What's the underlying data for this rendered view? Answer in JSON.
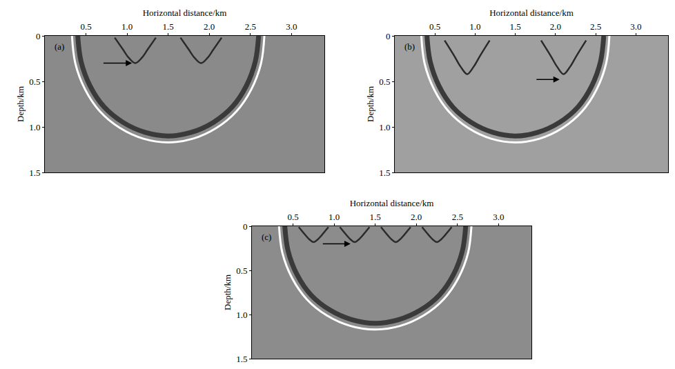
{
  "chart_data": [
    {
      "type": "line",
      "label": "(a)",
      "color": "#8a8a8a",
      "xlabel": "Horizontal distance/km",
      "ylabel": "Depth/km",
      "xlim": [
        0,
        3.4
      ],
      "ylim": [
        1.5,
        0
      ],
      "xticks": [
        0.5,
        {
          "value": 1,
          "label": "1.0"
        },
        1.5,
        {
          "value": 2,
          "label": "2.0"
        },
        2.5,
        {
          "value": 3,
          "label": "3.0"
        }
      ],
      "yticks": [
        0,
        0.5,
        {
          "value": 1,
          "label": "1.0"
        },
        1.5
      ],
      "series": [
        {
          "color": "#3a3a3a",
          "x": [
            2.6,
            2.56,
            2.45,
            2.28,
            2.05,
            1.78,
            1.5,
            1.22,
            0.95,
            0.72,
            0.55,
            0.44,
            0.4
          ],
          "values": [
            0,
            0.28,
            0.55,
            0.78,
            0.95,
            1.06,
            1.1,
            1.06,
            0.95,
            0.78,
            0.55,
            0.28,
            0
          ]
        },
        {
          "color": "#ffffff",
          "x": [
            2.67,
            2.63,
            2.51,
            2.33,
            2.09,
            1.8,
            1.5,
            1.2,
            0.91,
            0.67,
            0.49,
            0.37,
            0.33
          ],
          "values": [
            0,
            0.3,
            0.59,
            0.83,
            1.01,
            1.13,
            1.17,
            1.13,
            1.01,
            0.83,
            0.59,
            0.3,
            0
          ]
        },
        {
          "color": "#2a2a2a",
          "x": [
            0.85,
            0.95,
            1.02,
            1.1,
            1.18,
            1.25,
            1.35
          ],
          "values": [
            0.02,
            0.15,
            0.24,
            0.3,
            0.24,
            0.15,
            0.02
          ]
        },
        {
          "color": "#2a2a2a",
          "x": [
            1.65,
            1.75,
            1.82,
            1.9,
            1.98,
            2.05,
            2.15
          ],
          "values": [
            0.02,
            0.15,
            0.24,
            0.3,
            0.24,
            0.15,
            0.02
          ]
        }
      ],
      "arrow": {
        "from_x": 0.7,
        "from_y": 0.3,
        "x": 1.06,
        "y": 0.3
      }
    },
    {
      "type": "line",
      "label": "(b)",
      "color": "#a0a0a0",
      "xlabel": "Horizontal distance/km",
      "ylabel": "Depth/km",
      "xlim": [
        0,
        3.4
      ],
      "ylim": [
        1.5,
        0
      ],
      "xticks": [
        0.5,
        {
          "value": 1,
          "label": "1.0"
        },
        1.5,
        {
          "value": 2,
          "label": "2.0"
        },
        2.5,
        {
          "value": 3,
          "label": "3.0"
        }
      ],
      "yticks": [
        0,
        0.5,
        {
          "value": 1,
          "label": "1.0"
        },
        1.5
      ],
      "series": [
        {
          "color": "#3a3a3a",
          "x": [
            2.6,
            2.56,
            2.45,
            2.28,
            2.05,
            1.78,
            1.5,
            1.22,
            0.95,
            0.72,
            0.55,
            0.44,
            0.4
          ],
          "values": [
            0,
            0.28,
            0.55,
            0.78,
            0.95,
            1.06,
            1.1,
            1.06,
            0.95,
            0.78,
            0.55,
            0.28,
            0
          ]
        },
        {
          "color": "#ffffff",
          "x": [
            2.67,
            2.63,
            2.51,
            2.33,
            2.09,
            1.8,
            1.5,
            1.2,
            0.91,
            0.67,
            0.49,
            0.37,
            0.33
          ],
          "values": [
            0,
            0.3,
            0.59,
            0.83,
            1.01,
            1.13,
            1.17,
            1.13,
            1.01,
            0.83,
            0.59,
            0.3,
            0
          ]
        },
        {
          "color": "#2a2a2a",
          "x": [
            0.62,
            0.74,
            0.82,
            0.9,
            0.98,
            1.06,
            1.18
          ],
          "values": [
            0.05,
            0.22,
            0.34,
            0.42,
            0.34,
            0.22,
            0.05
          ]
        },
        {
          "color": "#2a2a2a",
          "x": [
            1.82,
            1.94,
            2.02,
            2.1,
            2.18,
            2.26,
            2.38
          ],
          "values": [
            0.05,
            0.22,
            0.34,
            0.42,
            0.34,
            0.22,
            0.05
          ]
        }
      ],
      "arrow": {
        "from_x": 1.75,
        "from_y": 0.48,
        "x": 2.05,
        "y": 0.48
      }
    },
    {
      "type": "line",
      "label": "(c)",
      "color": "#8c8c8c",
      "xlabel": "Horizontal distance/km",
      "ylabel": "Depth/km",
      "xlim": [
        0,
        3.4
      ],
      "ylim": [
        1.5,
        0
      ],
      "xticks": [
        0.5,
        {
          "value": 1,
          "label": "1.0"
        },
        1.5,
        {
          "value": 2,
          "label": "2.0"
        },
        2.5,
        {
          "value": 3,
          "label": "3.0"
        }
      ],
      "yticks": [
        0,
        0.5,
        {
          "value": 1,
          "label": "1.0"
        },
        1.5
      ],
      "series": [
        {
          "color": "#3a3a3a",
          "x": [
            2.6,
            2.56,
            2.45,
            2.28,
            2.05,
            1.78,
            1.5,
            1.22,
            0.95,
            0.72,
            0.55,
            0.44,
            0.4
          ],
          "values": [
            0,
            0.28,
            0.55,
            0.78,
            0.95,
            1.06,
            1.1,
            1.06,
            0.95,
            0.78,
            0.55,
            0.28,
            0
          ]
        },
        {
          "color": "#ffffff",
          "x": [
            2.67,
            2.63,
            2.51,
            2.33,
            2.09,
            1.8,
            1.5,
            1.2,
            0.91,
            0.67,
            0.49,
            0.37,
            0.33
          ],
          "values": [
            0,
            0.3,
            0.59,
            0.83,
            1.01,
            1.13,
            1.17,
            1.13,
            1.01,
            0.83,
            0.59,
            0.3,
            0
          ]
        },
        {
          "color": "#2a2a2a",
          "x": [
            0.57,
            0.65,
            0.7,
            0.75,
            0.8,
            0.85,
            0.93
          ],
          "values": [
            0.01,
            0.1,
            0.15,
            0.18,
            0.15,
            0.1,
            0.01
          ]
        },
        {
          "color": "#2a2a2a",
          "x": [
            1.07,
            1.15,
            1.2,
            1.25,
            1.3,
            1.35,
            1.43
          ],
          "values": [
            0.01,
            0.1,
            0.15,
            0.18,
            0.15,
            0.1,
            0.01
          ]
        },
        {
          "color": "#2a2a2a",
          "x": [
            1.57,
            1.65,
            1.7,
            1.75,
            1.8,
            1.85,
            1.93
          ],
          "values": [
            0.01,
            0.1,
            0.15,
            0.18,
            0.15,
            0.1,
            0.01
          ]
        },
        {
          "color": "#2a2a2a",
          "x": [
            2.07,
            2.15,
            2.2,
            2.25,
            2.3,
            2.35,
            2.43
          ],
          "values": [
            0.01,
            0.1,
            0.15,
            0.18,
            0.15,
            0.1,
            0.01
          ]
        }
      ],
      "arrow": {
        "from_x": 0.85,
        "from_y": 0.2,
        "x": 1.2,
        "y": 0.2
      }
    }
  ]
}
